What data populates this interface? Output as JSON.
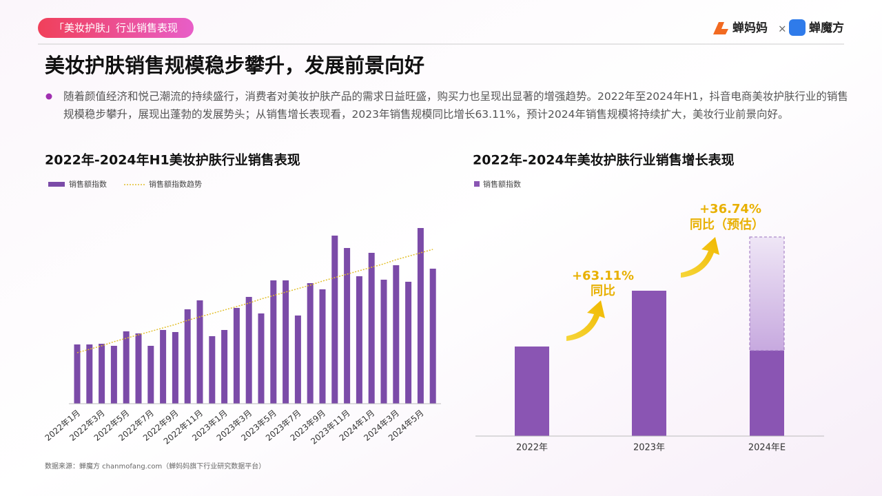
{
  "header": {
    "tag": "「美妆护肤」行业销售表现",
    "brand1": "蝉妈妈",
    "times": "×",
    "brand2": "蝉魔方"
  },
  "title": "美妆护肤销售规模稳步攀升，发展前景向好",
  "bullet": "随着颜值经济和悦己潮流的持续盛行，消费者对美妆护肤产品的需求日益旺盛，购买力也呈现出显著的增强趋势。2022年至2024年H1，抖音电商美妆护肤行业的销售规模稳步攀升，展现出蓬勃的发展势头；从销售增长表现看，2023年销售规模同比增长63.11%，预计2024年销售规模将持续扩大，美妆行业前景向好。",
  "source": "数据来源：蝉魔方 chanmofang.com（蝉妈妈旗下行业研究数据平台）",
  "chart_data": [
    {
      "type": "bar",
      "title": "2022年-2024年H1美妆护肤行业销售表现",
      "categories": [
        "2022年1月",
        null,
        "2022年3月",
        null,
        "2022年5月",
        null,
        "2022年7月",
        null,
        "2022年9月",
        null,
        "2022年11月",
        null,
        "2023年1月",
        null,
        "2023年3月",
        null,
        "2023年5月",
        null,
        "2023年7月",
        null,
        "2023年9月",
        null,
        "2023年11月",
        null,
        "2024年1月",
        null,
        "2024年3月",
        null,
        "2024年5月",
        null
      ],
      "series": [
        {
          "name": "销售额指数",
          "color": "#7b4ba8",
          "values": [
            86,
            86,
            87,
            84,
            105,
            102,
            84,
            107,
            104,
            137,
            150,
            98,
            107,
            139,
            155,
            131,
            179,
            179,
            128,
            175,
            166,
            244,
            226,
            185,
            219,
            180,
            201,
            177,
            255,
            196
          ]
        },
        {
          "name": "销售额指数趋势",
          "color": "#e2c02c",
          "values": [
            74,
            79,
            84,
            90,
            95,
            100,
            105,
            110,
            115,
            121,
            126,
            131,
            136,
            141,
            146,
            152,
            157,
            162,
            167,
            172,
            178,
            183,
            188,
            193,
            198,
            203,
            209,
            214,
            219,
            224
          ]
        }
      ]
    },
    {
      "type": "bar",
      "title": "2022年-2024年美妆护肤行业销售增长表现",
      "categories": [
        "2022年",
        "2023年",
        "2024年E"
      ],
      "series": [
        {
          "name": "销售额指数",
          "color": "#8a55b3",
          "values": [
            130,
            211,
            124
          ]
        },
        {
          "color": "#c9ace0",
          "values": [
            null,
            null,
            165
          ]
        }
      ],
      "annotations": [
        {
          "value": "+63.11%",
          "label": "同比"
        },
        {
          "value": "+36.74%",
          "label": "同比（预估）"
        }
      ]
    }
  ]
}
